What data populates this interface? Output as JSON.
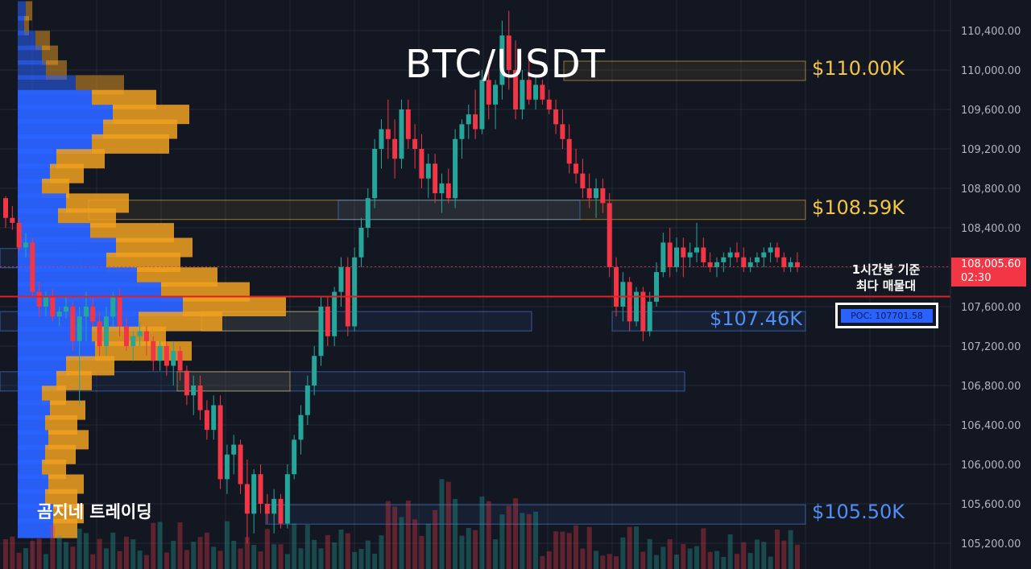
{
  "chart_data": {
    "type": "candlestick",
    "title": "BTC/USDT",
    "y_axis": {
      "ticks": [
        "110,400.00",
        "110,000.00",
        "109,600.00",
        "109,200.00",
        "108,800.00",
        "108,400.00",
        "108,000.00",
        "107,600.00",
        "107,200.00",
        "106,800.00",
        "106,400.00",
        "106,000.00",
        "105,600.00",
        "105,200.00"
      ],
      "tick_values": [
        110400,
        110000,
        109600,
        109200,
        108800,
        108400,
        108000,
        107600,
        107200,
        106800,
        106400,
        106000,
        105600,
        105200
      ],
      "range": [
        105000,
        110700
      ]
    },
    "current_price": {
      "label": "108,005.60",
      "countdown": "02:30",
      "value": 108005.6,
      "color": "#f23645"
    },
    "candles": [
      [
        108700,
        108720,
        108400,
        108500
      ],
      [
        108500,
        108620,
        108380,
        108450
      ],
      [
        108450,
        108500,
        108150,
        108200
      ],
      [
        108200,
        108350,
        108100,
        108250
      ],
      [
        108250,
        108300,
        107700,
        107750
      ],
      [
        107750,
        107850,
        107500,
        107600
      ],
      [
        107600,
        107750,
        107500,
        107700
      ],
      [
        107700,
        107780,
        107450,
        107500
      ],
      [
        107500,
        107600,
        107400,
        107550
      ],
      [
        107550,
        107700,
        107480,
        107600
      ],
      [
        107600,
        107650,
        107150,
        107250
      ],
      [
        107250,
        107600,
        106600,
        107500
      ],
      [
        107500,
        107750,
        107250,
        107600
      ],
      [
        107600,
        107700,
        107400,
        107450
      ],
      [
        107450,
        107550,
        107100,
        107200
      ],
      [
        107200,
        107600,
        107100,
        107500
      ],
      [
        107500,
        107750,
        107400,
        107700
      ],
      [
        107700,
        107780,
        107300,
        107400
      ],
      [
        107400,
        107500,
        107150,
        107200
      ],
      [
        107200,
        107350,
        107050,
        107300
      ],
      [
        107300,
        107450,
        107200,
        107350
      ],
      [
        107350,
        107400,
        107100,
        107250
      ],
      [
        107250,
        107300,
        106950,
        107050
      ],
      [
        107050,
        107250,
        106950,
        107200
      ],
      [
        107200,
        107250,
        106900,
        107000
      ],
      [
        107000,
        107250,
        106800,
        107150
      ],
      [
        107150,
        107200,
        106850,
        106950
      ],
      [
        106950,
        107000,
        106600,
        106700
      ],
      [
        106700,
        106900,
        106500,
        106800
      ],
      [
        106800,
        106900,
        106450,
        106550
      ],
      [
        106550,
        106650,
        106250,
        106350
      ],
      [
        106350,
        106700,
        106250,
        106600
      ],
      [
        106600,
        106700,
        105750,
        105850
      ],
      [
        105850,
        106200,
        105700,
        106100
      ],
      [
        106100,
        106300,
        105900,
        106200
      ],
      [
        106200,
        106250,
        105700,
        105800
      ],
      [
        105800,
        106050,
        105200,
        105500
      ],
      [
        105500,
        105950,
        105300,
        105900
      ],
      [
        105900,
        106000,
        105500,
        105600
      ],
      [
        105600,
        105700,
        105400,
        105500
      ],
      [
        105500,
        105750,
        105300,
        105650
      ],
      [
        105650,
        105700,
        105350,
        105400
      ],
      [
        105400,
        106000,
        105350,
        105900
      ],
      [
        105900,
        106300,
        105850,
        106250
      ],
      [
        106250,
        106600,
        106100,
        106500
      ],
      [
        106500,
        106900,
        106400,
        106800
      ],
      [
        106800,
        107200,
        106700,
        107100
      ],
      [
        107100,
        107700,
        107000,
        107600
      ],
      [
        107600,
        107700,
        107200,
        107300
      ],
      [
        107300,
        107800,
        107200,
        107750
      ],
      [
        107750,
        108100,
        107600,
        108000
      ],
      [
        108000,
        108100,
        107300,
        107400
      ],
      [
        107400,
        108200,
        107350,
        108100
      ],
      [
        108100,
        108500,
        108000,
        108400
      ],
      [
        108400,
        108800,
        108300,
        108700
      ],
      [
        108700,
        109300,
        108600,
        109200
      ],
      [
        109200,
        109500,
        109000,
        109400
      ],
      [
        109400,
        109700,
        109100,
        109300
      ],
      [
        109300,
        109500,
        108900,
        109100
      ],
      [
        109100,
        109700,
        109000,
        109600
      ],
      [
        109600,
        109700,
        109200,
        109300
      ],
      [
        109300,
        109450,
        109000,
        109200
      ],
      [
        109200,
        109350,
        108800,
        108900
      ],
      [
        108900,
        109150,
        108700,
        109050
      ],
      [
        109050,
        109150,
        108650,
        108750
      ],
      [
        108750,
        108950,
        108550,
        108850
      ],
      [
        108850,
        109000,
        108650,
        108700
      ],
      [
        108700,
        109400,
        108600,
        109300
      ],
      [
        109300,
        109500,
        109100,
        109450
      ],
      [
        109450,
        109650,
        109300,
        109550
      ],
      [
        109550,
        109800,
        109300,
        109400
      ],
      [
        109400,
        110000,
        109350,
        109900
      ],
      [
        109900,
        110100,
        109500,
        109650
      ],
      [
        109650,
        109900,
        109400,
        109850
      ],
      [
        109850,
        110500,
        109700,
        110350
      ],
      [
        110350,
        110600,
        109800,
        110000
      ],
      [
        110000,
        110300,
        109500,
        109600
      ],
      [
        109600,
        110000,
        109500,
        109900
      ],
      [
        109900,
        110100,
        109650,
        109700
      ],
      [
        109700,
        109950,
        109600,
        109850
      ],
      [
        109850,
        109900,
        109650,
        109700
      ],
      [
        109700,
        109800,
        109550,
        109600
      ],
      [
        109600,
        109700,
        109350,
        109450
      ],
      [
        109450,
        109600,
        109200,
        109300
      ],
      [
        109300,
        109450,
        108950,
        109050
      ],
      [
        109050,
        109200,
        108850,
        108950
      ],
      [
        108950,
        109100,
        108700,
        108800
      ],
      [
        108800,
        108950,
        108600,
        108700
      ],
      [
        108700,
        108900,
        108500,
        108800
      ],
      [
        108800,
        108900,
        108550,
        108650
      ],
      [
        108650,
        108750,
        107900,
        108000
      ],
      [
        108000,
        108100,
        107500,
        107600
      ],
      [
        107600,
        107950,
        107450,
        107850
      ],
      [
        107850,
        107900,
        107350,
        107450
      ],
      [
        107450,
        107800,
        107400,
        107750
      ],
      [
        107750,
        107800,
        107250,
        107350
      ],
      [
        107350,
        107750,
        107300,
        107650
      ],
      [
        107650,
        108050,
        107600,
        107950
      ],
      [
        107950,
        108350,
        107900,
        108250
      ],
      [
        108250,
        108400,
        107900,
        108000
      ],
      [
        108000,
        108300,
        107950,
        108200
      ],
      [
        108200,
        108300,
        107900,
        108100
      ],
      [
        108100,
        108250,
        108000,
        108150
      ],
      [
        108150,
        108450,
        108050,
        108200
      ],
      [
        108200,
        108300,
        108000,
        108050
      ],
      [
        108050,
        108150,
        107950,
        108000
      ],
      [
        108000,
        108100,
        107900,
        108050
      ],
      [
        108050,
        108150,
        107950,
        108100
      ],
      [
        108100,
        108200,
        108000,
        108150
      ],
      [
        108150,
        108250,
        108050,
        108100
      ],
      [
        108100,
        108200,
        107950,
        108000
      ],
      [
        108000,
        108100,
        107950,
        108050
      ],
      [
        108050,
        108150,
        108000,
        108100
      ],
      [
        108100,
        108200,
        108000,
        108150
      ],
      [
        108150,
        108250,
        108050,
        108200
      ],
      [
        108200,
        108250,
        108050,
        108100
      ],
      [
        108100,
        108150,
        107950,
        108000
      ],
      [
        108000,
        108100,
        107950,
        108050
      ],
      [
        108050,
        108150,
        107950,
        108000
      ]
    ],
    "volume_profile_levels": [
      110600,
      110450,
      110300,
      110150,
      110000,
      109850,
      109700,
      109550,
      109400,
      109250,
      109100,
      108950,
      108800,
      108650,
      108500,
      108350,
      108200,
      108050,
      107900,
      107750,
      107600,
      107450,
      107300,
      107150,
      107000,
      106850,
      106700,
      106550,
      106400,
      106250,
      106100,
      105950,
      105800,
      105650,
      105500,
      105350
    ],
    "volume_profile": {
      "buy": [
        10,
        8,
        22,
        30,
        35,
        72,
        92,
        118,
        106,
        92,
        48,
        40,
        30,
        60,
        50,
        90,
        122,
        110,
        148,
        178,
        205,
        150,
        92,
        96,
        60,
        48,
        30,
        40,
        34,
        38,
        34,
        30,
        38,
        34,
        44,
        44
      ],
      "sell": [
        8,
        6,
        18,
        20,
        26,
        60,
        80,
        95,
        92,
        96,
        60,
        42,
        34,
        78,
        72,
        104,
        95,
        92,
        100,
        110,
        128,
        104,
        92,
        120,
        60,
        44,
        30,
        44,
        40,
        50,
        38,
        30,
        44,
        40,
        38,
        30
      ]
    },
    "key_levels": [
      {
        "label": "$110.00K",
        "value": 110000,
        "color": "#f5c542"
      },
      {
        "label": "$108.59K",
        "value": 108590,
        "color": "#f5c542"
      },
      {
        "label": "$107.46K",
        "value": 107460,
        "color": "#4f8ef7"
      },
      {
        "label": "$105.50K",
        "value": 105500,
        "color": "#4f8ef7"
      }
    ],
    "poc": {
      "label": "POC: 107701.58",
      "value": 107701.58,
      "note_lines": [
        "1시간봉 기준",
        "최다 매물대"
      ]
    },
    "grid": true
  },
  "watermark": "곰지네 트레이딩",
  "colors": {
    "background": "#131722",
    "up": "#26a69a",
    "down": "#f23645",
    "vp_buy": "#2962ff",
    "vp_sell": "#f0a020",
    "poc_line": "#e02020"
  }
}
